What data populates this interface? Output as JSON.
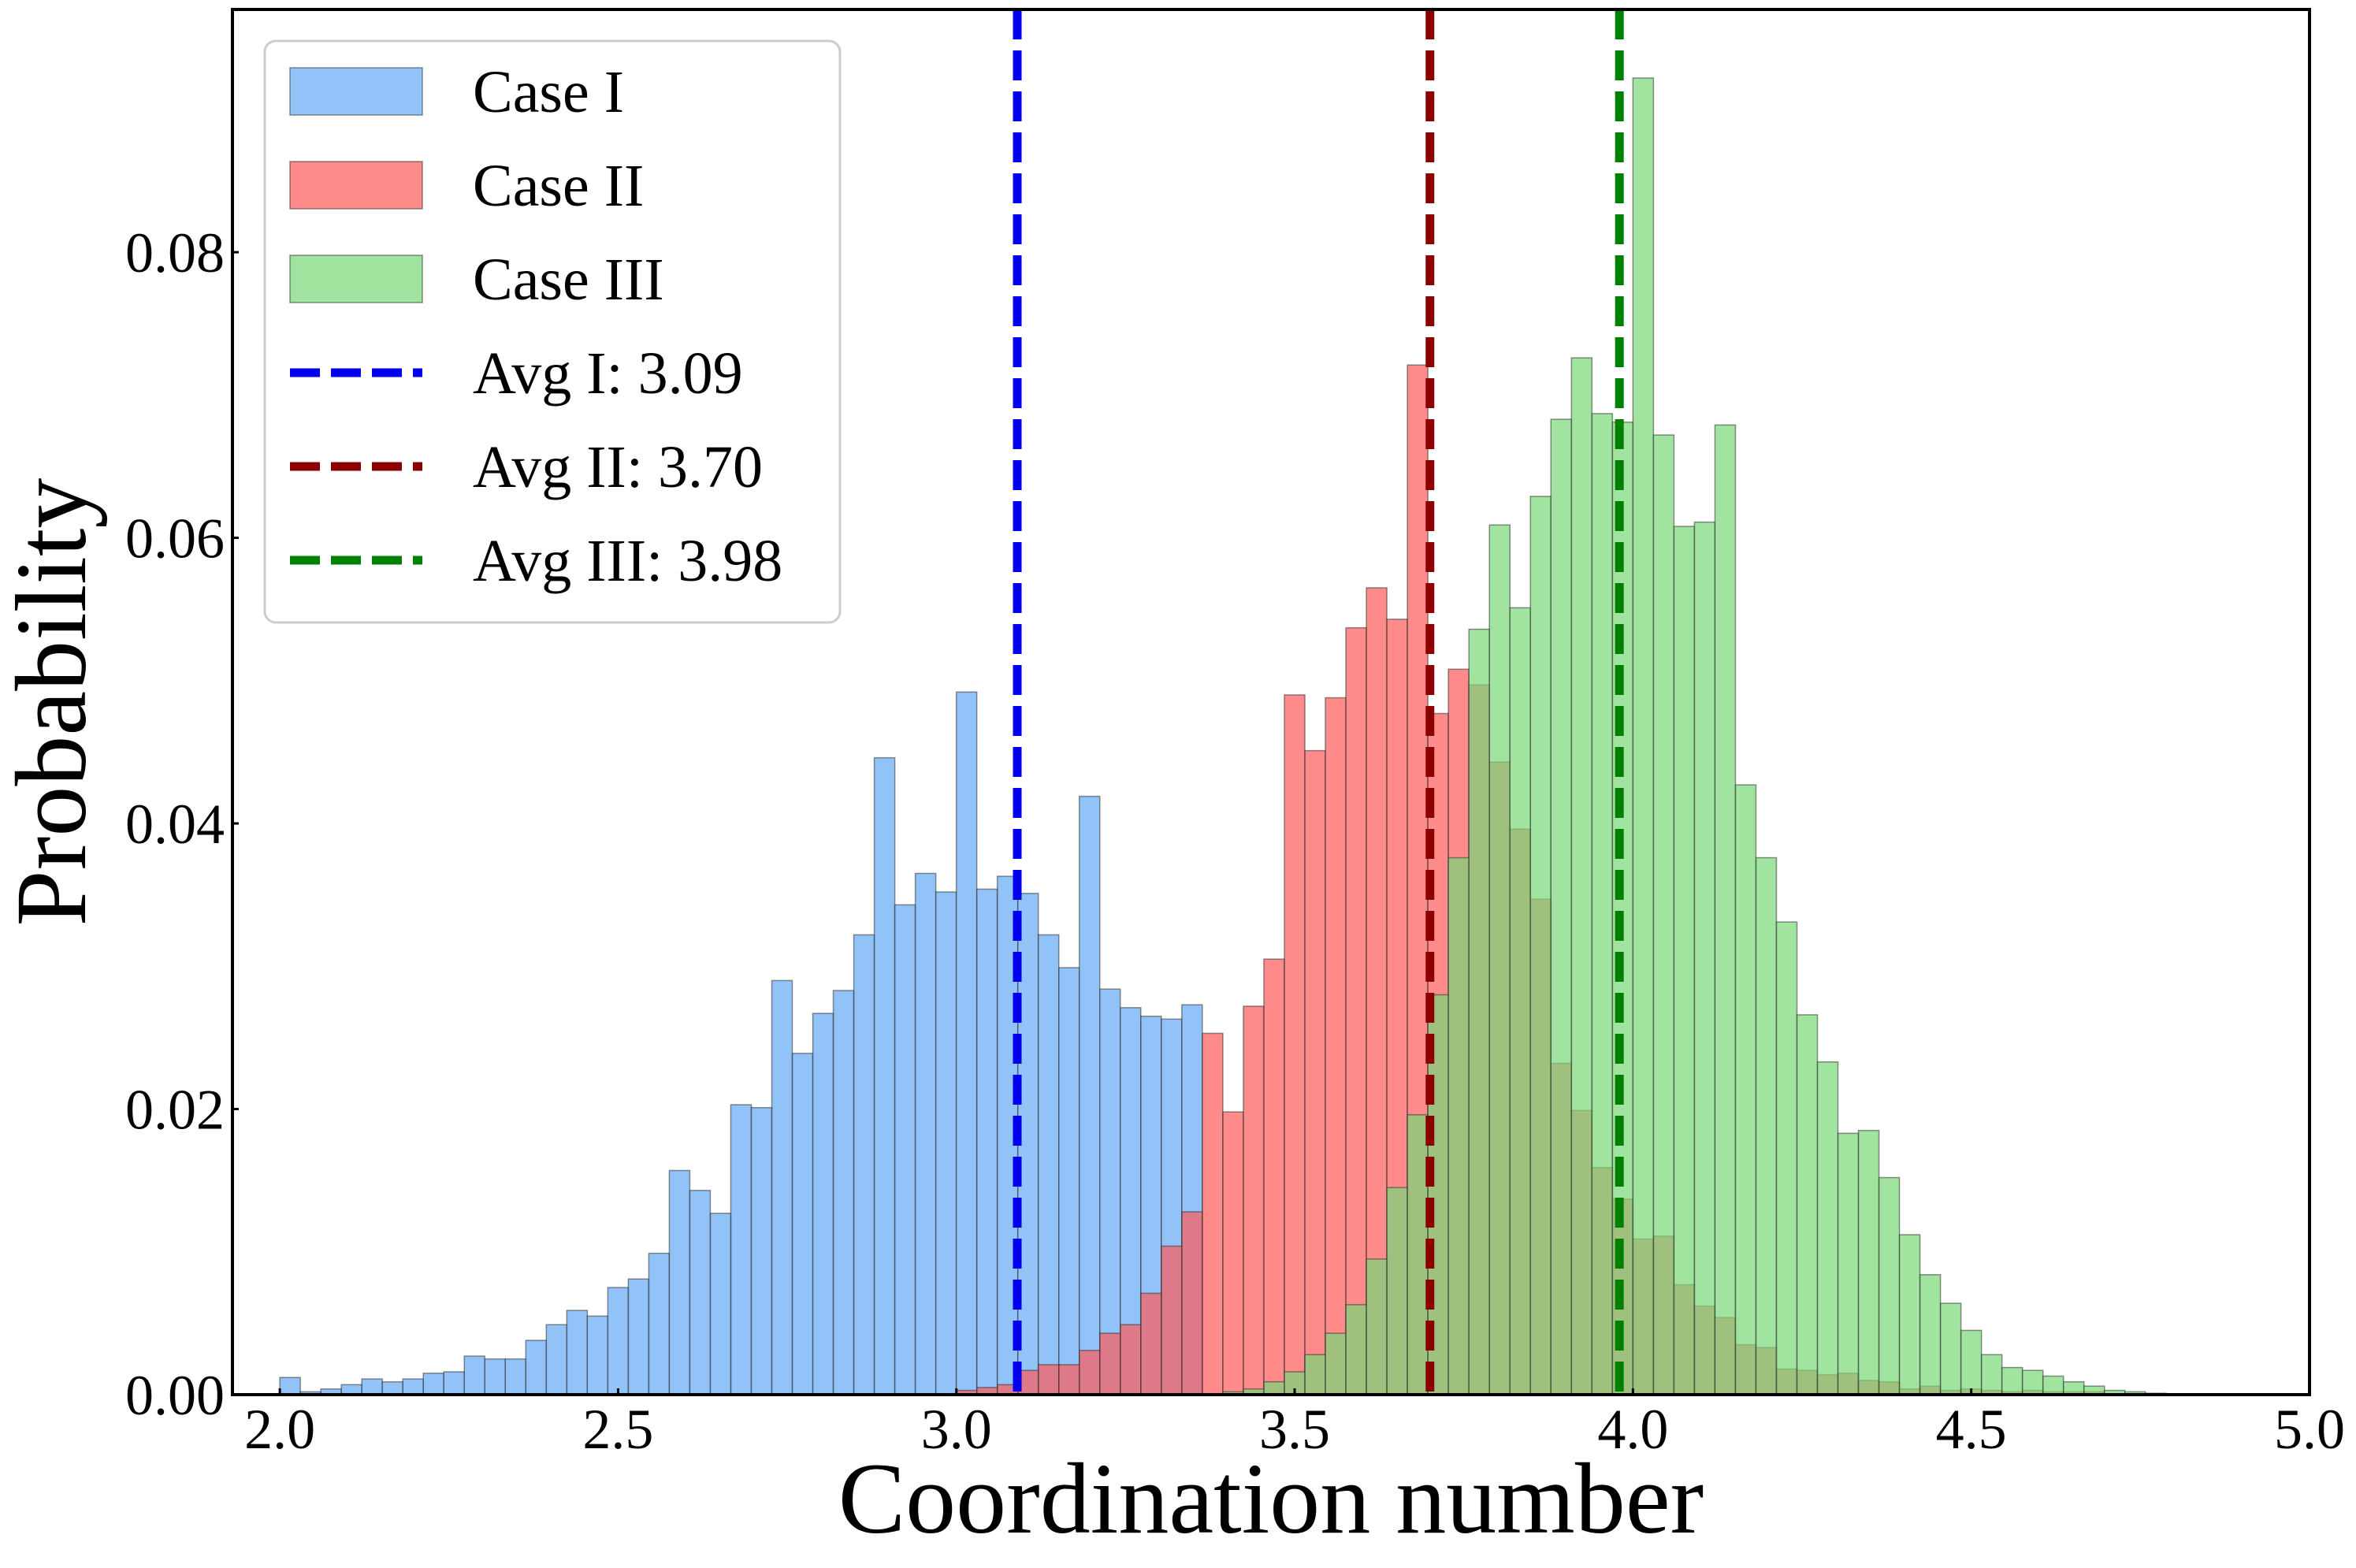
{
  "chart_data": {
    "type": "bar",
    "title": "",
    "xlabel": "Coordination number",
    "ylabel": "Probability",
    "xlim": [
      1.93,
      5.0
    ],
    "ylim": [
      0,
      0.097
    ],
    "xticks": [
      2.0,
      2.5,
      3.0,
      3.5,
      4.0,
      4.5,
      5.0
    ],
    "xtick_labels": [
      "2.0",
      "2.5",
      "3.0",
      "3.5",
      "4.0",
      "4.5",
      "5.0"
    ],
    "yticks": [
      0.0,
      0.02,
      0.04,
      0.06,
      0.08
    ],
    "ytick_labels": [
      "0.00",
      "0.02",
      "0.04",
      "0.06",
      "0.08"
    ],
    "grid": false,
    "legend_position": "top-left",
    "bin_width": 0.0303,
    "series": [
      {
        "name": "Case I",
        "color": "#64aaf5",
        "bin_start": 2.0,
        "values": [
          0.0012,
          0.0002,
          0.0004,
          0.0007,
          0.0011,
          0.0009,
          0.0011,
          0.0015,
          0.0016,
          0.0027,
          0.0025,
          0.0025,
          0.0038,
          0.0049,
          0.0059,
          0.0055,
          0.0075,
          0.0081,
          0.0099,
          0.0157,
          0.0143,
          0.0127,
          0.0203,
          0.0201,
          0.029,
          0.0239,
          0.0267,
          0.0283,
          0.0322,
          0.0446,
          0.0343,
          0.0365,
          0.0352,
          0.0492,
          0.0354,
          0.0363,
          0.0351,
          0.0322,
          0.0299,
          0.0419,
          0.0284,
          0.0271,
          0.0265,
          0.0263,
          0.0273
        ]
      },
      {
        "name": "Case II",
        "color": "#ff5a5a",
        "bin_start": 3.0,
        "values": [
          0.0003,
          0.0005,
          0.0007,
          0.0017,
          0.0021,
          0.0021,
          0.0031,
          0.0043,
          0.0049,
          0.0071,
          0.0104,
          0.0128,
          0.0253,
          0.0198,
          0.0272,
          0.0305,
          0.049,
          0.0451,
          0.0488,
          0.0537,
          0.0565,
          0.0543,
          0.0721,
          0.0477,
          0.0508,
          0.0497,
          0.0443,
          0.0396,
          0.0347,
          0.0232,
          0.0199,
          0.0159,
          0.0137,
          0.0109,
          0.0111,
          0.0077,
          0.0062,
          0.0054,
          0.0035,
          0.0033,
          0.0018,
          0.0017,
          0.0014,
          0.0015,
          0.001,
          0.0009,
          0.0004,
          0.0006,
          0.0003,
          0.0004,
          0.0003,
          0.0002,
          0.0003,
          0.0002,
          0.0002,
          0.0002
        ]
      },
      {
        "name": "Case III",
        "color": "#78d878",
        "bin_start": 3.394,
        "values": [
          0.0002,
          0.0004,
          0.0009,
          0.0016,
          0.0028,
          0.0043,
          0.0063,
          0.0095,
          0.0145,
          0.0196,
          0.028,
          0.0376,
          0.0536,
          0.0609,
          0.0551,
          0.0629,
          0.0683,
          0.0726,
          0.0687,
          0.0681,
          0.0922,
          0.0672,
          0.0608,
          0.0611,
          0.0679,
          0.0427,
          0.0376,
          0.0331,
          0.0266,
          0.0233,
          0.0183,
          0.0185,
          0.0152,
          0.0112,
          0.0084,
          0.0064,
          0.0045,
          0.0028,
          0.0019,
          0.0017,
          0.0013,
          0.0009,
          0.0006,
          0.0003,
          0.0002,
          0.0001
        ]
      }
    ],
    "vlines": [
      {
        "name": "Avg I: 3.09",
        "x": 3.09,
        "color": "#0000ee"
      },
      {
        "name": "Avg II: 3.70",
        "x": 3.7,
        "color": "#8b0000"
      },
      {
        "name": "Avg III: 3.98",
        "x": 3.98,
        "color": "#008000"
      }
    ],
    "legend": [
      "Case I",
      "Case II",
      "Case III",
      "Avg I: 3.09",
      "Avg II: 3.70",
      "Avg III: 3.98"
    ]
  }
}
